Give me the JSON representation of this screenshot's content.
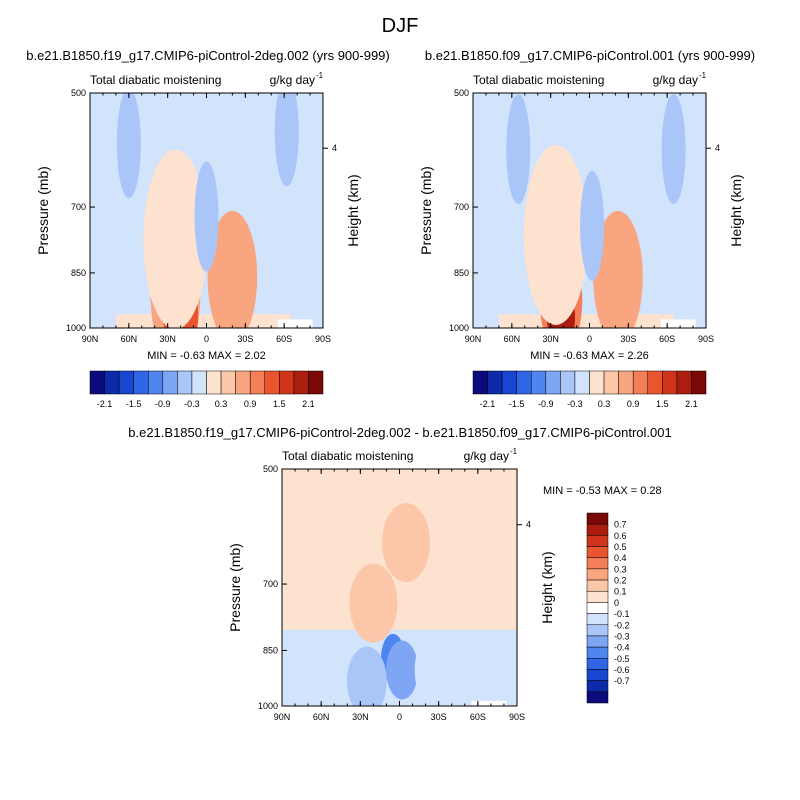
{
  "page": {
    "title": "DJF"
  },
  "chart_data": [
    {
      "type": "heatmap",
      "title": "b.e21.B1850.f19_g17.CMIP6-piControl-2deg.002 (yrs 900-999)",
      "left_string": "Total diabatic moistening",
      "right_string": "g/kg day",
      "right_sup": "-1",
      "ylabel": "Pressure (mb)",
      "y2label": "Height (km)",
      "x_ticks": [
        "90N",
        "60N",
        "30N",
        "0",
        "30S",
        "60S",
        "90S"
      ],
      "y_ticks": [
        "500",
        "700",
        "850",
        "1000"
      ],
      "y2_ticks": [
        "4"
      ],
      "stats": {
        "min_label": "MIN =",
        "min": "-0.63",
        "max_label": "MAX =",
        "max": "2.02"
      },
      "colorbar": {
        "orientation": "horizontal",
        "tick_labels": [
          "-2.1",
          "-1.5",
          "-0.9",
          "-0.3",
          "0.3",
          "0.9",
          "1.5",
          "2.1"
        ]
      },
      "features": [
        {
          "lat": 24,
          "p": 910,
          "value": 0.9
        },
        {
          "lat": 20,
          "p": 960,
          "value": 1.5
        },
        {
          "lat": 24,
          "p": 770,
          "value": 0.3
        },
        {
          "lat": -20,
          "p": 860,
          "value": 0.9
        },
        {
          "lat": 0,
          "p": 720,
          "value": -0.3
        },
        {
          "lat": 60,
          "p": 580,
          "value": -0.3
        },
        {
          "lat": -62,
          "p": 560,
          "value": -0.3
        }
      ]
    },
    {
      "type": "heatmap",
      "title": "b.e21.B1850.f09_g17.CMIP6-piControl.001 (yrs 900-999)",
      "left_string": "Total diabatic moistening",
      "right_string": "g/kg day",
      "right_sup": "-1",
      "ylabel": "Pressure (mb)",
      "y2label": "Height (km)",
      "x_ticks": [
        "90N",
        "60N",
        "30N",
        "0",
        "30S",
        "60S",
        "90S"
      ],
      "y_ticks": [
        "500",
        "700",
        "850",
        "1000"
      ],
      "y2_ticks": [
        "4"
      ],
      "stats": {
        "min_label": "MIN =",
        "min": "-0.63",
        "max_label": "MAX =",
        "max": "2.26"
      },
      "colorbar": {
        "orientation": "horizontal",
        "tick_labels": [
          "-2.1",
          "-1.5",
          "-0.9",
          "-0.3",
          "0.3",
          "0.9",
          "1.5",
          "2.1"
        ]
      },
      "features": [
        {
          "lat": 22,
          "p": 920,
          "value": 1.2
        },
        {
          "lat": 22,
          "p": 970,
          "value": 2.1
        },
        {
          "lat": 26,
          "p": 760,
          "value": 0.3
        },
        {
          "lat": -22,
          "p": 860,
          "value": 0.9
        },
        {
          "lat": -2,
          "p": 740,
          "value": -0.3
        },
        {
          "lat": 55,
          "p": 590,
          "value": -0.3
        },
        {
          "lat": -65,
          "p": 590,
          "value": -0.3
        }
      ]
    },
    {
      "type": "heatmap",
      "title": "b.e21.B1850.f19_g17.CMIP6-piControl-2deg.002 - b.e21.B1850.f09_g17.CMIP6-piControl.001",
      "left_string": "Total diabatic moistening",
      "right_string": "g/kg day",
      "right_sup": "-1",
      "ylabel": "Pressure (mb)",
      "y2label": "Height (km)",
      "x_ticks": [
        "90N",
        "60N",
        "30N",
        "0",
        "30S",
        "60S",
        "90S"
      ],
      "y_ticks": [
        "500",
        "700",
        "850",
        "1000"
      ],
      "y2_ticks": [
        "4"
      ],
      "stats": {
        "min_label": "MIN =",
        "min": "-0.53",
        "max_label": "MAX =",
        "max": "0.28"
      },
      "colorbar": {
        "orientation": "vertical",
        "tick_labels": [
          "0.7",
          "0.6",
          "0.5",
          "0.4",
          "0.3",
          "0.2",
          "0.1",
          "0",
          "-0.1",
          "-0.2",
          "-0.3",
          "-0.4",
          "-0.5",
          "-0.6",
          "-0.7"
        ]
      },
      "features": [
        {
          "lat": 5,
          "p": 870,
          "value": -0.4
        },
        {
          "lat": -2,
          "p": 900,
          "value": -0.3
        },
        {
          "lat": 25,
          "p": 930,
          "value": -0.2
        },
        {
          "lat": -30,
          "p": 900,
          "value": -0.1
        },
        {
          "lat": 20,
          "p": 740,
          "value": 0.1
        },
        {
          "lat": -5,
          "p": 620,
          "value": 0.1
        }
      ]
    }
  ],
  "colors": {
    "main_ramp": [
      "#0b0b7e",
      "#0d2aa8",
      "#1746d0",
      "#2e66e6",
      "#4f85ef",
      "#7ea6f4",
      "#aac6f8",
      "#d2e3fc",
      "#fde2cf",
      "#fcc7a8",
      "#f9a57f",
      "#f47e57",
      "#e8552f",
      "#d0341a",
      "#ab1d0e",
      "#7a0806"
    ],
    "diff_ramp": [
      "#7a0806",
      "#ab1d0e",
      "#d0341a",
      "#e8552f",
      "#f47e57",
      "#f9a57f",
      "#fcc7a8",
      "#fde2cf",
      "#ffffff",
      "#d2e3fc",
      "#aac6f8",
      "#7ea6f4",
      "#4f85ef",
      "#2e66e6",
      "#1746d0",
      "#0d2aa8",
      "#0b0b7e"
    ],
    "missing": "#ffffff"
  }
}
